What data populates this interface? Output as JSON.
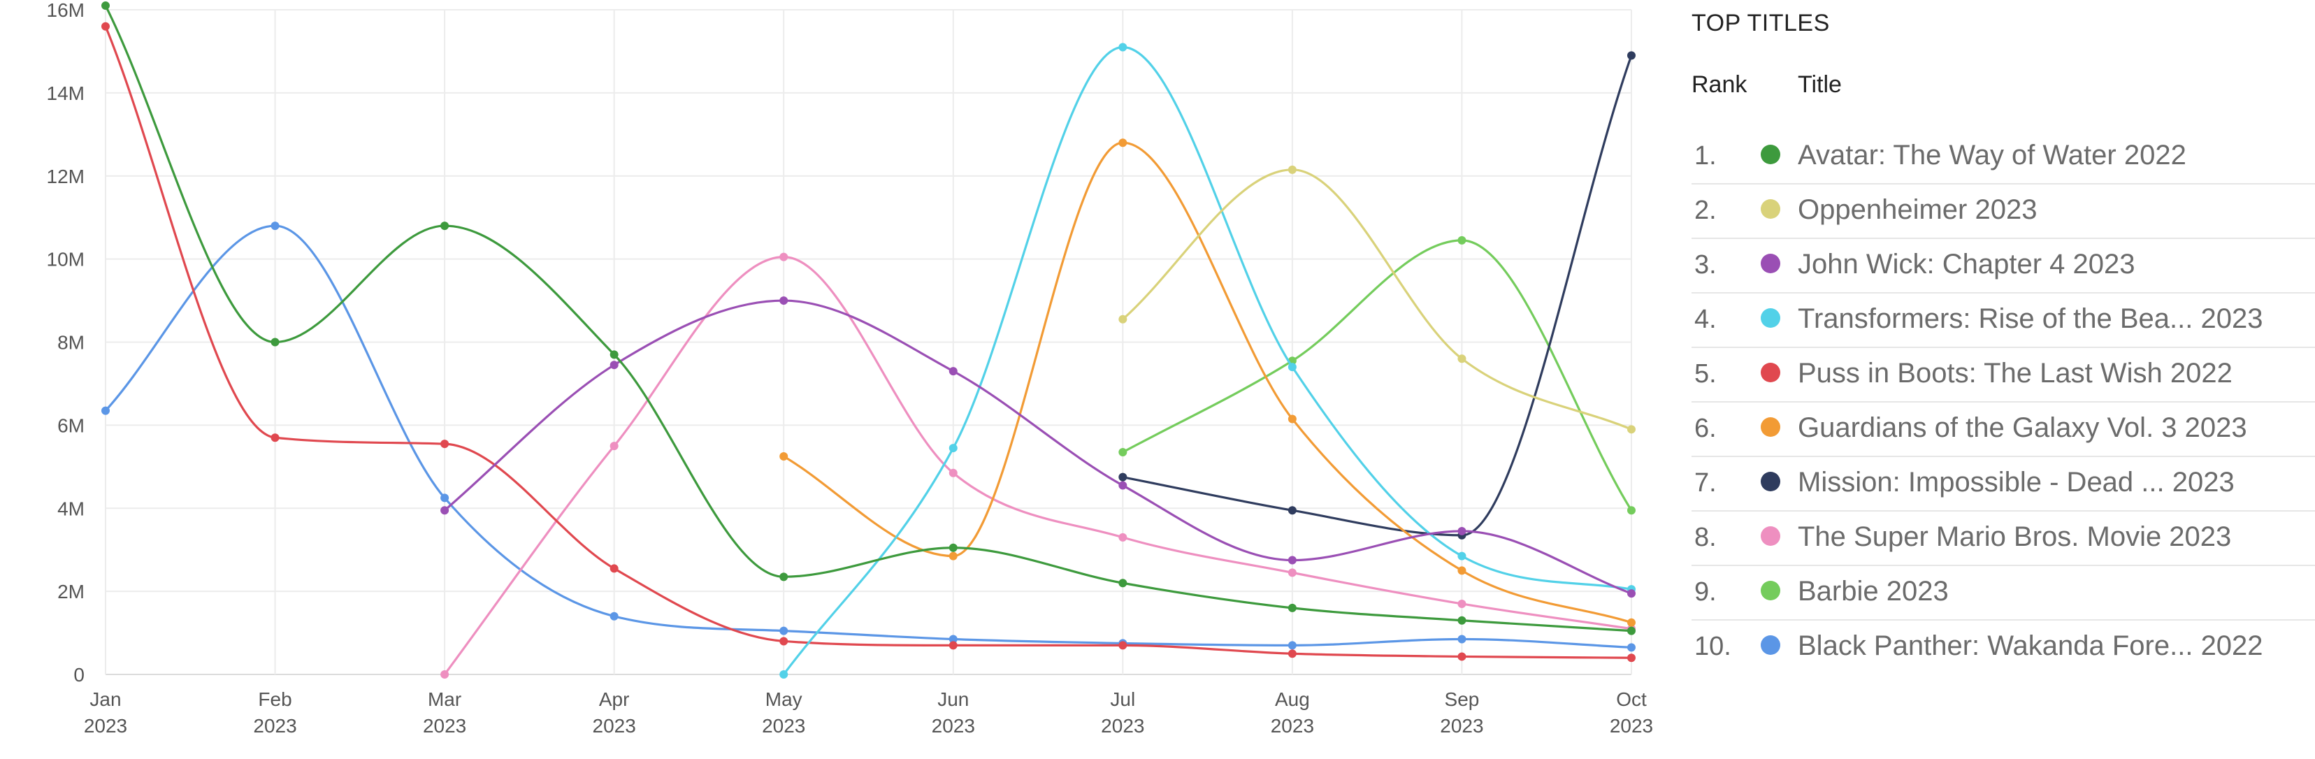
{
  "legend": {
    "heading": "TOP TITLES",
    "col_rank": "Rank",
    "col_title": "Title",
    "rows": [
      {
        "rank": "1.",
        "title": "Avatar: The Way of Water 2022",
        "color": "#3d9a3d"
      },
      {
        "rank": "2.",
        "title": "Oppenheimer 2023",
        "color": "#d9d27a"
      },
      {
        "rank": "3.",
        "title": "John Wick: Chapter 4 2023",
        "color": "#9a4fb4"
      },
      {
        "rank": "4.",
        "title": "Transformers: Rise of the Bea... 2023",
        "color": "#52d1e8"
      },
      {
        "rank": "5.",
        "title": "Puss in Boots: The Last Wish 2022",
        "color": "#e0484f"
      },
      {
        "rank": "6.",
        "title": "Guardians of the Galaxy Vol. 3 2023",
        "color": "#f29b35"
      },
      {
        "rank": "7.",
        "title": "Mission: Impossible - Dead ... 2023",
        "color": "#2f3c5e"
      },
      {
        "rank": "8.",
        "title": "The Super Mario Bros. Movie 2023",
        "color": "#ee8fc0"
      },
      {
        "rank": "9.",
        "title": "Barbie 2023",
        "color": "#74cc5c"
      },
      {
        "rank": "10.",
        "title": "Black Panther: Wakanda Fore... 2022",
        "color": "#5b96e6"
      }
    ]
  },
  "chart_data": {
    "type": "line",
    "categories": [
      "Jan 2023",
      "Feb 2023",
      "Mar 2023",
      "Apr 2023",
      "May 2023",
      "Jun 2023",
      "Jul 2023",
      "Aug 2023",
      "Sep 2023",
      "Oct 2023"
    ],
    "x_tick_labels": [
      [
        "Jan",
        "2023"
      ],
      [
        "Feb",
        "2023"
      ],
      [
        "Mar",
        "2023"
      ],
      [
        "Apr",
        "2023"
      ],
      [
        "May",
        "2023"
      ],
      [
        "Jun",
        "2023"
      ],
      [
        "Jul",
        "2023"
      ],
      [
        "Aug",
        "2023"
      ],
      [
        "Sep",
        "2023"
      ],
      [
        "Oct",
        "2023"
      ]
    ],
    "y_tick_labels": [
      "0",
      "2M",
      "4M",
      "6M",
      "8M",
      "10M",
      "12M",
      "14M",
      "16M"
    ],
    "ylim": [
      0,
      16000000
    ],
    "grid": true,
    "series": [
      {
        "name": "Avatar: The Way of Water 2022",
        "color": "#3d9a3d",
        "values": [
          16100000,
          8000000,
          10800000,
          7700000,
          2350000,
          3050000,
          2200000,
          1600000,
          1300000,
          1050000
        ]
      },
      {
        "name": "Oppenheimer 2023",
        "color": "#d9d27a",
        "values": [
          null,
          null,
          null,
          null,
          null,
          null,
          8550000,
          12150000,
          7600000,
          5900000
        ]
      },
      {
        "name": "John Wick: Chapter 4 2023",
        "color": "#9a4fb4",
        "values": [
          null,
          null,
          3950000,
          7450000,
          9000000,
          7300000,
          4550000,
          2750000,
          3450000,
          1950000
        ]
      },
      {
        "name": "Transformers: Rise of the Bea... 2023",
        "color": "#52d1e8",
        "values": [
          null,
          null,
          null,
          null,
          0,
          5450000,
          15100000,
          7400000,
          2850000,
          2050000
        ]
      },
      {
        "name": "Puss in Boots: The Last Wish 2022",
        "color": "#e0484f",
        "values": [
          15600000,
          5700000,
          5550000,
          2550000,
          800000,
          700000,
          700000,
          500000,
          430000,
          400000
        ]
      },
      {
        "name": "Guardians of the Galaxy Vol. 3 2023",
        "color": "#f29b35",
        "values": [
          null,
          null,
          null,
          null,
          5250000,
          2850000,
          12800000,
          6150000,
          2500000,
          1250000
        ]
      },
      {
        "name": "Mission: Impossible - Dead ... 2023",
        "color": "#2f3c5e",
        "values": [
          null,
          null,
          null,
          null,
          null,
          null,
          4750000,
          3950000,
          3350000,
          14900000
        ]
      },
      {
        "name": "The Super Mario Bros. Movie 2023",
        "color": "#ee8fc0",
        "values": [
          null,
          null,
          0,
          5500000,
          10050000,
          4850000,
          3300000,
          2450000,
          1700000,
          1100000
        ]
      },
      {
        "name": "Barbie 2023",
        "color": "#74cc5c",
        "values": [
          null,
          null,
          null,
          null,
          null,
          null,
          5350000,
          7550000,
          10450000,
          3950000
        ]
      },
      {
        "name": "Black Panther: Wakanda Fore... 2022",
        "color": "#5b96e6",
        "values": [
          6350000,
          10800000,
          4250000,
          1400000,
          1050000,
          850000,
          750000,
          700000,
          850000,
          650000
        ]
      }
    ]
  }
}
